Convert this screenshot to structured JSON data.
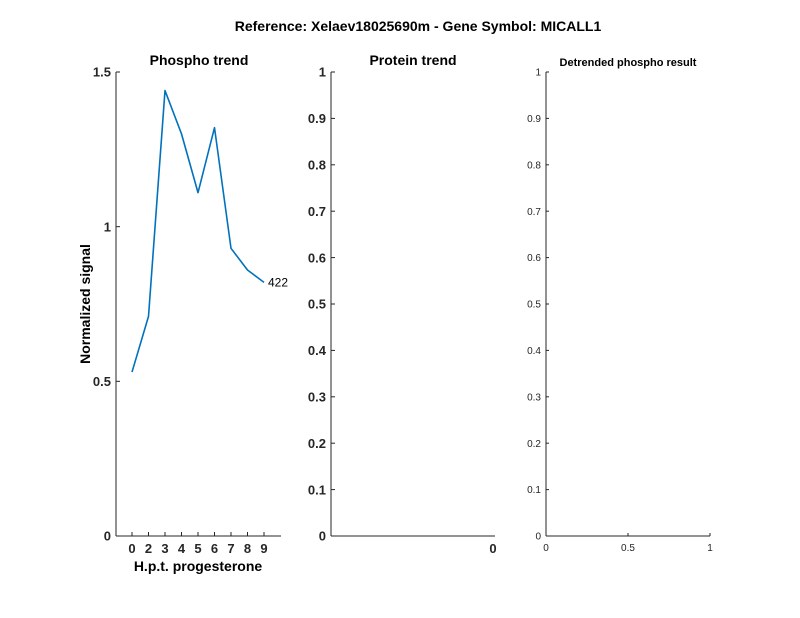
{
  "figure": {
    "suptitle": "Reference:  Xelaev18025690m - Gene Symbol:  MICALL1"
  },
  "chart_data": [
    {
      "type": "line",
      "title": "Phospho trend",
      "xlabel": "H.p.t. progesterone",
      "ylabel": "Normalized signal",
      "x": [
        0,
        2,
        3,
        4,
        5,
        6,
        7,
        8,
        9
      ],
      "xtick_labels": [
        "0",
        "2",
        "3",
        "4",
        "5",
        "6",
        "7",
        "8",
        "9"
      ],
      "series": [
        {
          "values": [
            0.53,
            0.71,
            1.44,
            1.3,
            1.11,
            1.32,
            0.93,
            0.86,
            0.82
          ],
          "color": "#0072BD"
        }
      ],
      "end_label": "422",
      "ylim": [
        0,
        1.5
      ],
      "yticks": [
        0,
        0.5,
        1,
        1.5
      ],
      "ytick_labels": [
        "0",
        "0.5",
        "1",
        "1.5"
      ],
      "grid": false
    },
    {
      "type": "line",
      "title": "Protein trend",
      "xlabel": "",
      "ylabel": "",
      "series": [],
      "ylim": [
        0,
        1
      ],
      "yticks": [
        0,
        0.1,
        0.2,
        0.3,
        0.4,
        0.5,
        0.6,
        0.7,
        0.8,
        0.9,
        1
      ],
      "ytick_labels": [
        "0",
        "0.1",
        "0.2",
        "0.3",
        "0.4",
        "0.5",
        "0.6",
        "0.7",
        "0.8",
        "0.9",
        "1"
      ],
      "xtick_labels": [
        "0"
      ],
      "grid": false
    },
    {
      "type": "line",
      "title": "Detrended phospho result",
      "xlabel": "",
      "ylabel": "",
      "series": [],
      "xlim": [
        0,
        1
      ],
      "xticks": [
        0,
        0.5,
        1
      ],
      "xtick_labels": [
        "0",
        "0.5",
        "1"
      ],
      "ylim": [
        0,
        1
      ],
      "yticks": [
        0,
        0.1,
        0.2,
        0.3,
        0.4,
        0.5,
        0.6,
        0.7,
        0.8,
        0.9,
        1
      ],
      "ytick_labels": [
        "0",
        "0.1",
        "0.2",
        "0.3",
        "0.4",
        "0.5",
        "0.6",
        "0.7",
        "0.8",
        "0.9",
        "1"
      ],
      "grid": false
    }
  ]
}
